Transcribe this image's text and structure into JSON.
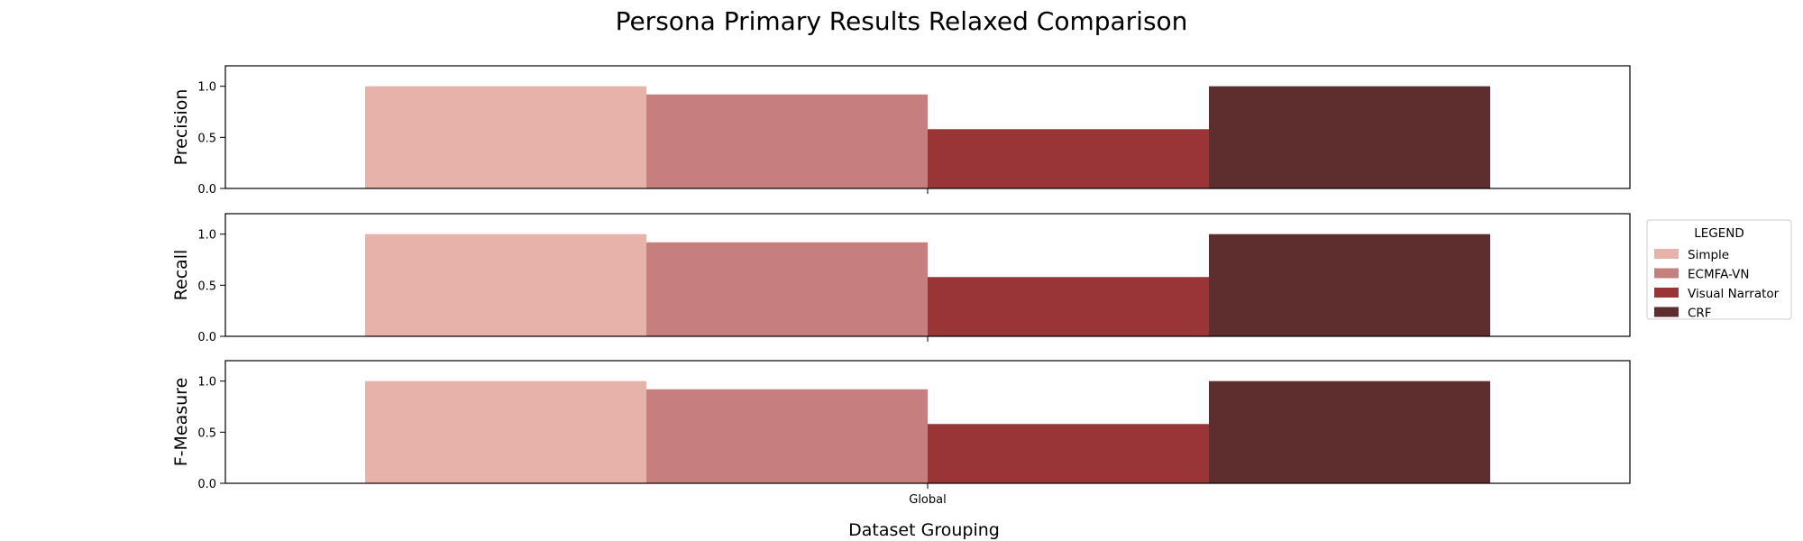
{
  "chart_data": {
    "type": "bar",
    "title": "Persona Primary Results Relaxed Comparison",
    "xlabel": "Dataset Grouping",
    "categories": [
      "Global"
    ],
    "ylim": [
      0,
      1.2
    ],
    "yticks": [
      "0.0",
      "0.5",
      "1.0"
    ],
    "grid": false,
    "legend": {
      "title": "LEGEND",
      "placement": "right"
    },
    "series": [
      {
        "name": "Simple",
        "color": "#e6b2aa"
      },
      {
        "name": "ECMFA-VN",
        "color": "#c67e7e"
      },
      {
        "name": "Visual Narrator",
        "color": "#993536"
      },
      {
        "name": "CRF",
        "color": "#5e2d2e"
      }
    ],
    "panels": [
      {
        "ylabel": "Precision",
        "values": [
          1.0,
          0.92,
          0.58,
          1.0
        ]
      },
      {
        "ylabel": "Recall",
        "values": [
          1.0,
          0.92,
          0.58,
          1.0
        ]
      },
      {
        "ylabel": "F-Measure",
        "values": [
          1.0,
          0.92,
          0.58,
          1.0
        ]
      }
    ]
  }
}
